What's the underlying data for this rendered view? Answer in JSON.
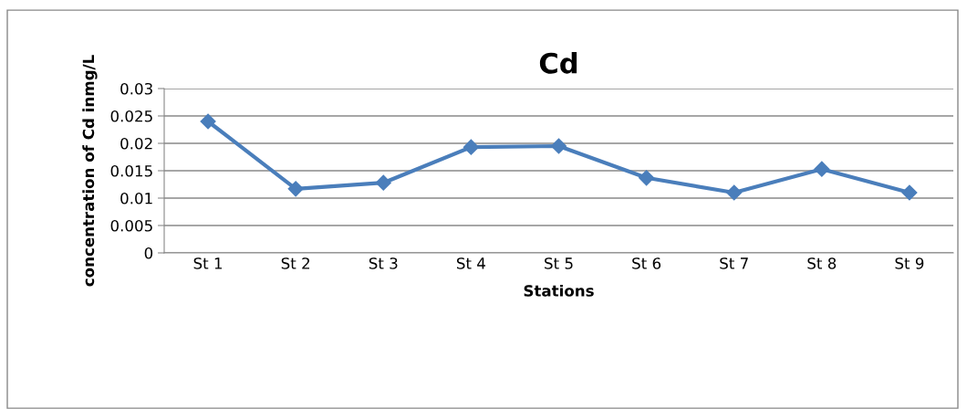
{
  "chart_data": {
    "type": "line",
    "title": "Cd",
    "xlabel": "Stations",
    "ylabel": "concentration of Cd inmg/L",
    "categories": [
      "St 1",
      "St 2",
      "St 3",
      "St 4",
      "St 5",
      "St 6",
      "St 7",
      "St 8",
      "St 9"
    ],
    "series": [
      {
        "color": "#4a7ebb",
        "values": [
          0.024,
          0.0117,
          0.0128,
          0.0193,
          0.0195,
          0.0137,
          0.011,
          0.0153,
          0.011
        ]
      }
    ],
    "ylim": [
      0,
      0.03
    ],
    "yticks": [
      0,
      0.005,
      0.01,
      0.015,
      0.02,
      0.025,
      0.03
    ],
    "grid": "y",
    "legend": false,
    "marker": "diamond",
    "line_style": "solid"
  }
}
